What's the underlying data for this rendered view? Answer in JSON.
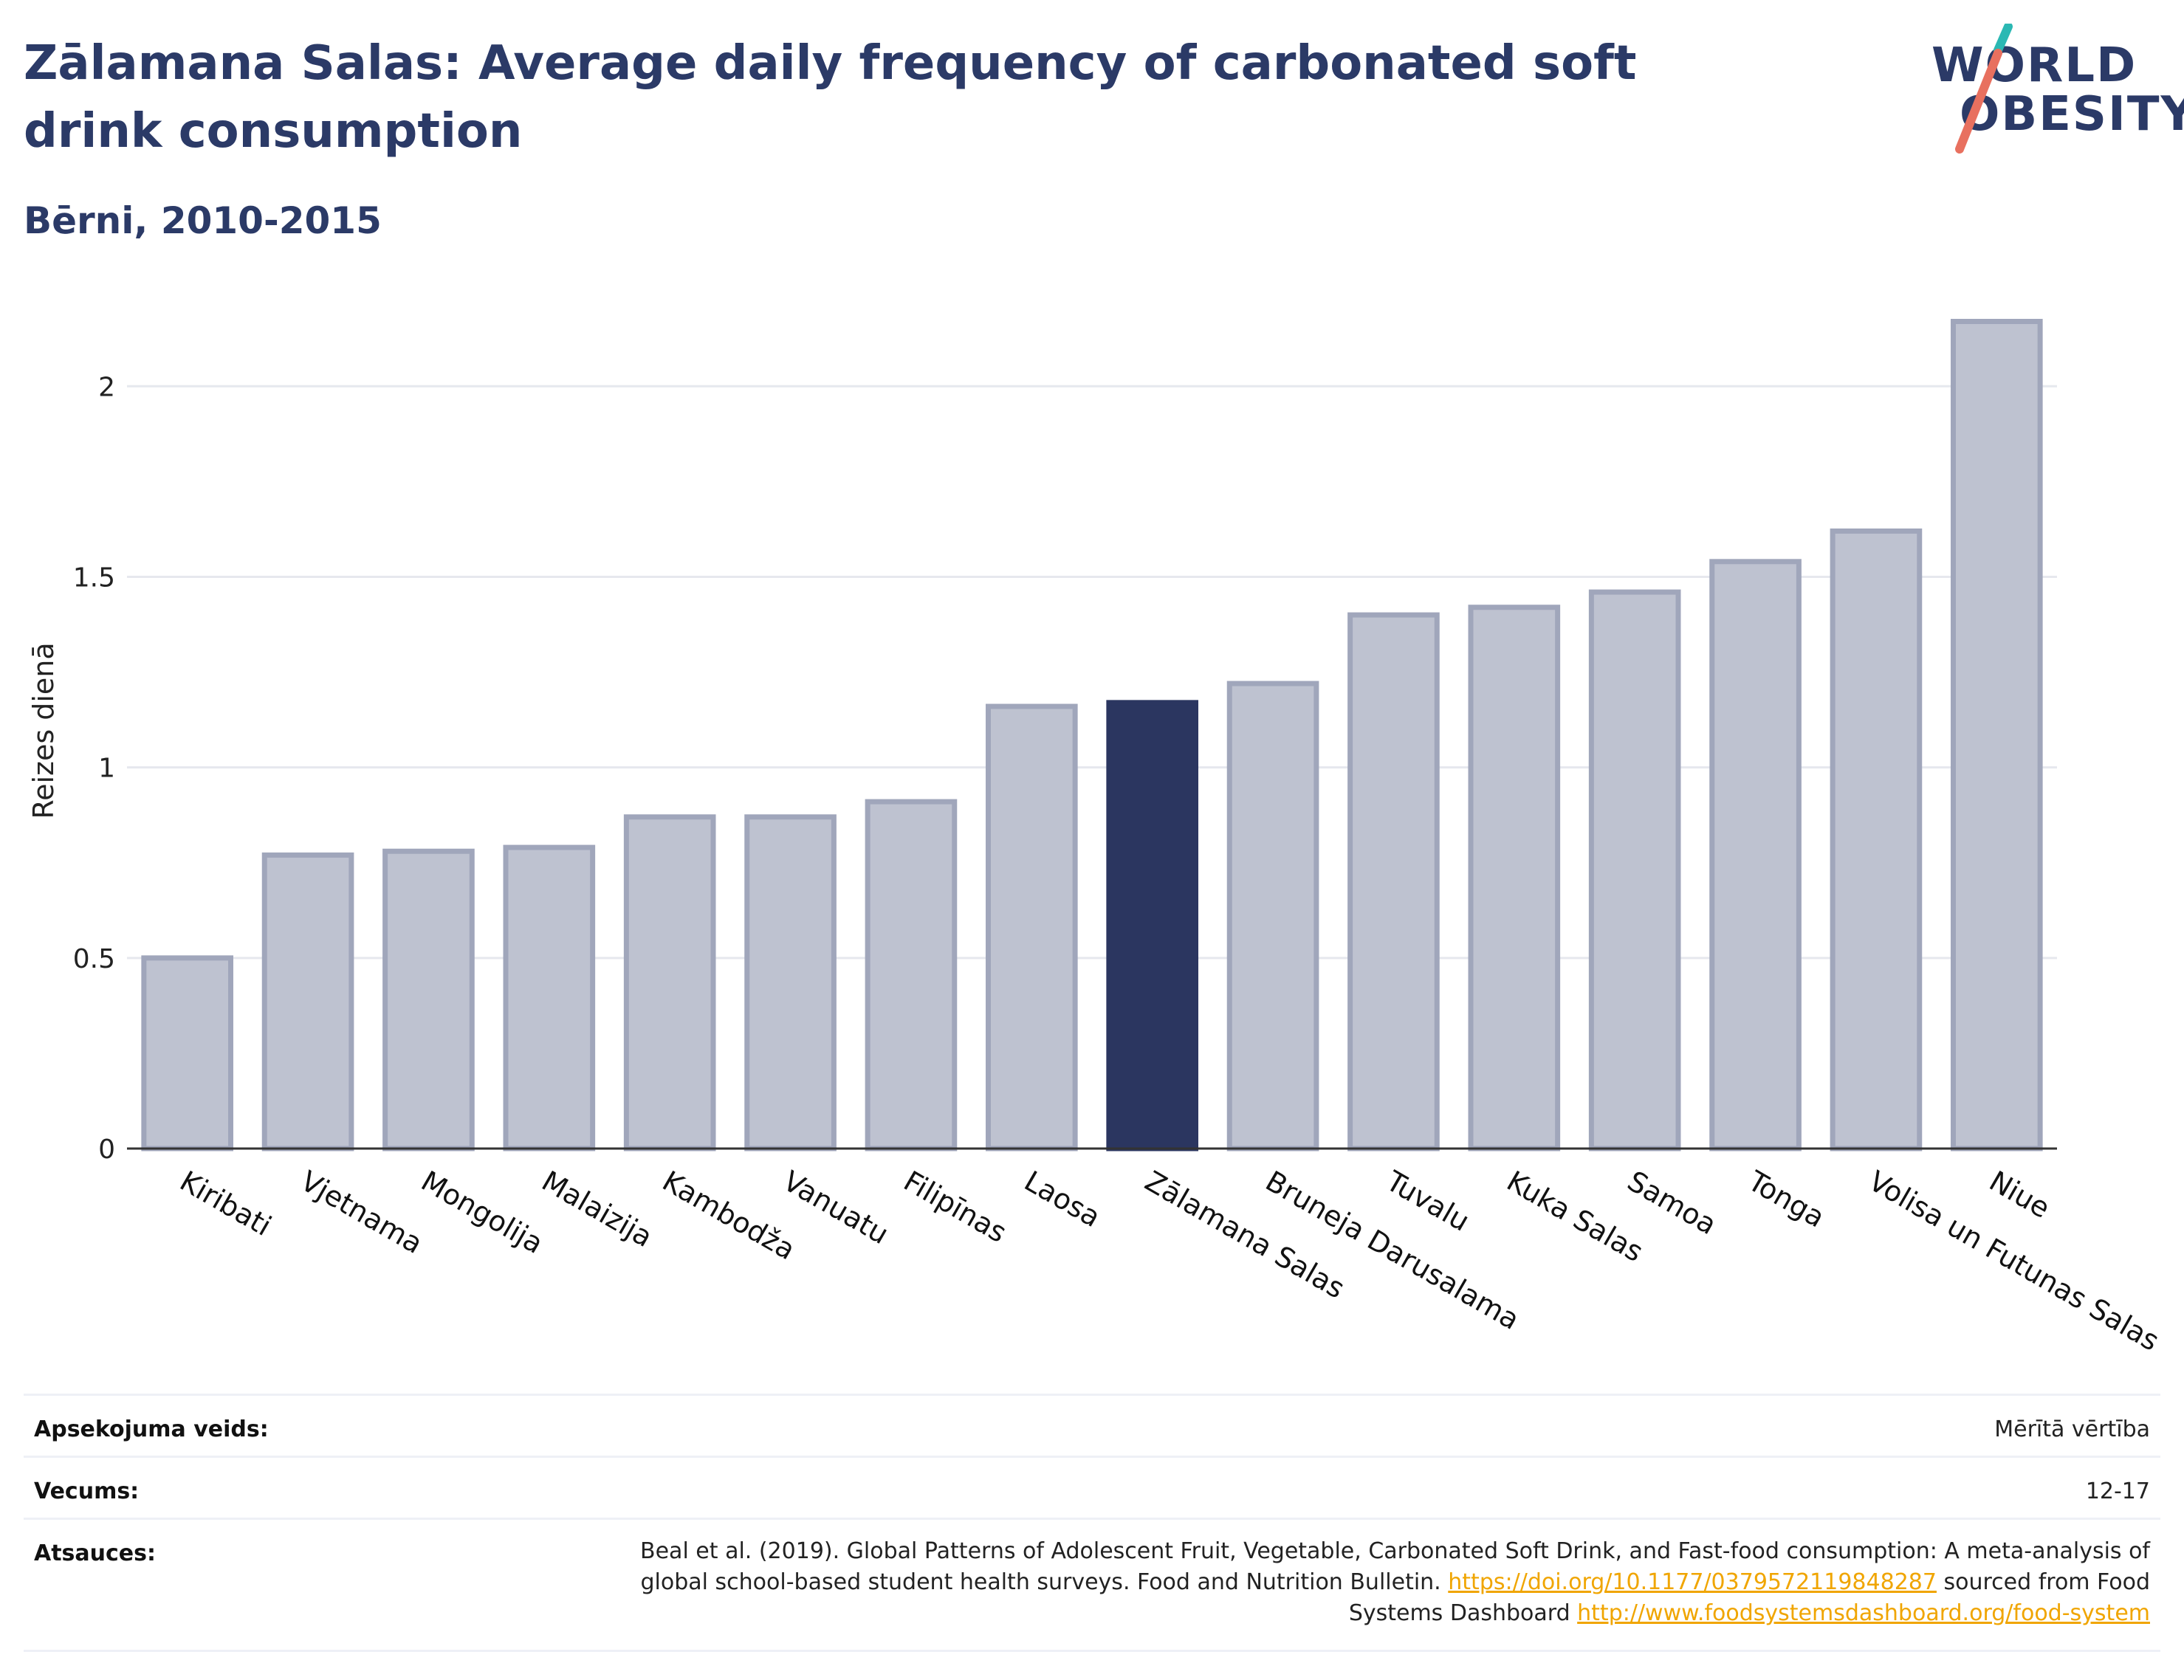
{
  "header": {
    "title": "Zālamana Salas: Average daily frequency of carbonated soft drink consumption",
    "subtitle": "Bērni, 2010-2015"
  },
  "logo": {
    "line1": "WORLD",
    "line2": "OBESITY",
    "icon": "world-obesity-logo"
  },
  "colors": {
    "highlight": "#2b3660",
    "bar": "#bec2d0",
    "bar_border": "#a0a6bb",
    "title": "#2b3a67",
    "link": "#f0a500"
  },
  "chart_data": {
    "type": "bar",
    "ylabel": "Reizes dienā",
    "xlabel": "",
    "ylim": [
      0,
      2.2
    ],
    "yticks": [
      0,
      0.5,
      1,
      1.5,
      2
    ],
    "ytick_labels": [
      "0",
      "0.5",
      "1",
      "1.5",
      "2"
    ],
    "grid": true,
    "highlight": "Zālamana Salas",
    "categories": [
      "Kiribati",
      "Vjetnama",
      "Mongolija",
      "Malaizija",
      "Kambodža",
      "Vanuatu",
      "Filipīnas",
      "Laosa",
      "Zālamana Salas",
      "Bruneja Darusalama",
      "Tuvalu",
      "Kuka Salas",
      "Samoa",
      "Tonga",
      "Volisa un Futunas Salas",
      "Niue"
    ],
    "values": [
      0.5,
      0.77,
      0.78,
      0.79,
      0.87,
      0.87,
      0.91,
      1.16,
      1.17,
      1.22,
      1.4,
      1.42,
      1.46,
      1.54,
      1.62,
      2.17
    ]
  },
  "meta": {
    "survey_label": "Apsekojuma veids:",
    "survey_value": "Mērītā vērtība",
    "age_label": "Vecums:",
    "age_value": "12-17",
    "source_label": "Atsauces:",
    "source_text_1": "Beal et al. (2019). Global Patterns of Adolescent Fruit, Vegetable, Carbonated Soft Drink, and Fast-food consumption: A meta-analysis of global school-based student health surveys. Food and Nutrition Bulletin.",
    "source_link_1": "https://doi.org/10.1177/0379572119848287",
    "source_text_2": "sourced from Food Systems Dashboard",
    "source_link_2": "http://www.foodsystemsdashboard.org/food-system"
  }
}
